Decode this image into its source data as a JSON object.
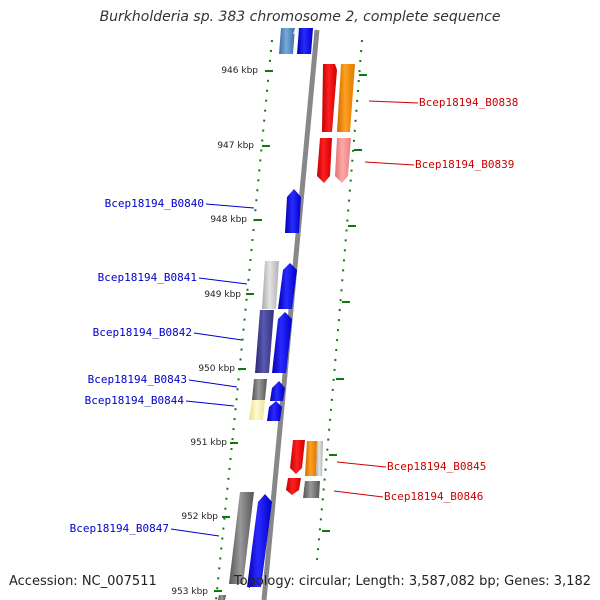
{
  "title": "Burkholderia sp. 383 chromosome 2, complete sequence",
  "footer": {
    "accession": "Accession: NC_007511",
    "summary": "Topology: circular; Length: 3,587,082 bp; Genes: 3,182"
  },
  "ruler": [
    "946 kbp",
    "947 kbp",
    "948 kbp",
    "949 kbp",
    "950 kbp",
    "951 kbp",
    "952 kbp",
    "953 kbp"
  ],
  "genes_forward": [
    "Bcep18194_B0838",
    "Bcep18194_B0839",
    "Bcep18194_B0845",
    "Bcep18194_B0846"
  ],
  "genes_reverse": [
    "Bcep18194_B0840",
    "Bcep18194_B0841",
    "Bcep18194_B0842",
    "Bcep18194_B0843",
    "Bcep18194_B0844",
    "Bcep18194_B0847"
  ],
  "colors": {
    "forward_label": "#cc0000",
    "reverse_label": "#0000cc",
    "backbone": "#888888",
    "ticks": "#117711"
  }
}
